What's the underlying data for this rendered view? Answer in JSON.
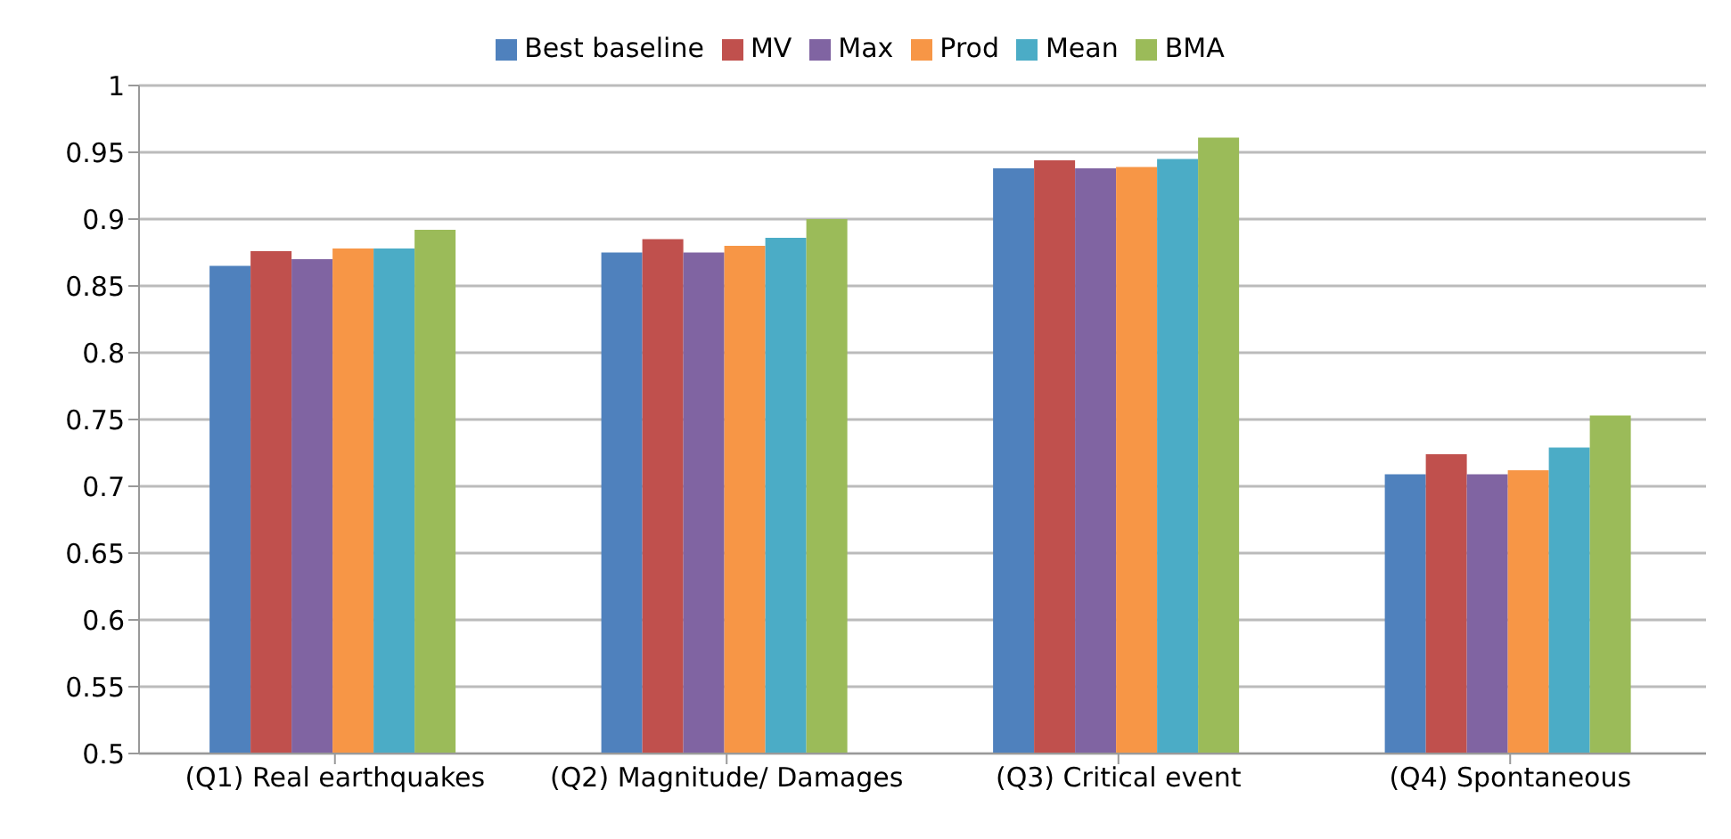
{
  "chart_data": {
    "type": "bar",
    "categories": [
      "(Q1) Real earthquakes",
      "(Q2) Magnitude/ Damages",
      "(Q3) Critical event",
      "(Q4) Spontaneous"
    ],
    "series": [
      {
        "name": "Best baseline",
        "color": "#4f81bd",
        "values": [
          0.865,
          0.875,
          0.938,
          0.709
        ]
      },
      {
        "name": "MV",
        "color": "#c0504d",
        "values": [
          0.876,
          0.885,
          0.944,
          0.724
        ]
      },
      {
        "name": "Max",
        "color": "#8064a2",
        "values": [
          0.87,
          0.875,
          0.938,
          0.709
        ]
      },
      {
        "name": "Prod",
        "color": "#f79646",
        "values": [
          0.878,
          0.88,
          0.939,
          0.712
        ]
      },
      {
        "name": "Mean",
        "color": "#4bacc6",
        "values": [
          0.878,
          0.886,
          0.945,
          0.729
        ]
      },
      {
        "name": "BMA",
        "color": "#9bbb59",
        "values": [
          0.892,
          0.9,
          0.961,
          0.753
        ]
      }
    ],
    "ylim": [
      0.5,
      1
    ],
    "yticks": [
      0.5,
      0.55,
      0.6,
      0.65,
      0.7,
      0.75,
      0.8,
      0.85,
      0.9,
      0.95,
      1
    ],
    "grid": "y",
    "legend": "top"
  }
}
